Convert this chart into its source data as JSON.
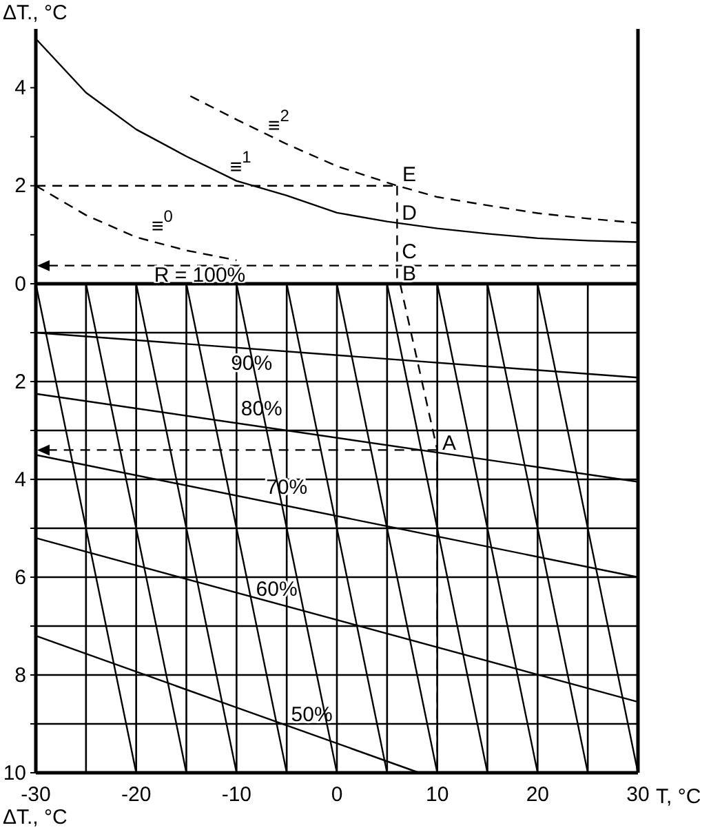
{
  "chart_data": [
    {
      "type": "line",
      "ylabel": "ΔT., °C",
      "xlim": [
        -30,
        30
      ],
      "ylim": [
        0,
        5.2
      ],
      "tick_labels": "y",
      "xticks": [
        {
          "value": -30,
          "label": null
        },
        {
          "value": -25,
          "label": null
        },
        {
          "value": -20,
          "label": null
        },
        {
          "value": -15,
          "label": null
        },
        {
          "value": -10,
          "label": null
        },
        {
          "value": -5,
          "label": null
        },
        {
          "value": 0,
          "label": null
        },
        {
          "value": 5,
          "label": null
        },
        {
          "value": 10,
          "label": null
        },
        {
          "value": 15,
          "label": null
        },
        {
          "value": 20,
          "label": null
        },
        {
          "value": 25,
          "label": null
        },
        {
          "value": 30,
          "label": null
        }
      ],
      "yticks": [
        0,
        {
          "value": 1,
          "label": null
        },
        2,
        {
          "value": 3,
          "label": null
        },
        4
      ],
      "series": [
        {
          "name": "≡$^{0}$",
          "color": "#000000",
          "line_style": "dashed",
          "x": [
            -30,
            -25,
            -20,
            -15,
            -10
          ],
          "values": [
            2.0,
            1.4,
            0.95,
            0.68,
            0.48
          ]
        },
        {
          "name": "≡$^{1}$",
          "color": "#000000",
          "line_style": "solid",
          "x": [
            -30,
            -25,
            -20,
            -15,
            -10,
            -5,
            0,
            5,
            10,
            15,
            20,
            25,
            30
          ],
          "values": [
            5.0,
            3.9,
            3.15,
            2.6,
            2.1,
            1.8,
            1.45,
            1.27,
            1.13,
            1.02,
            0.93,
            0.88,
            0.85
          ]
        },
        {
          "name": "≡$^{2}$",
          "color": "#000000",
          "line_style": "dashed",
          "x": [
            -14.6,
            -10,
            -5,
            0,
            6,
            10,
            15,
            20,
            25,
            30
          ],
          "values": [
            3.83,
            3.35,
            2.85,
            2.4,
            2.0,
            1.77,
            1.6,
            1.44,
            1.33,
            1.24
          ]
        },
        {
          "color": "#000000",
          "line_style": "dashed",
          "x": [
            -30,
            6
          ],
          "values": [
            2,
            2
          ]
        },
        {
          "color": "#000000",
          "line_style": "dashed",
          "x": [
            6,
            6
          ],
          "values": [
            2,
            0
          ]
        }
      ],
      "ref_lines": [
        {
          "axis": "y",
          "value": 0.37,
          "line_style": "dashed"
        }
      ],
      "annotations": [
        "R = 100%",
        "E",
        "D",
        "C",
        "B"
      ]
    },
    {
      "type": "line",
      "xlabel": "T, °C",
      "ylabel": "ΔT., °C",
      "xlim": [
        -30,
        30
      ],
      "ylim": [
        10,
        0
      ],
      "grid": true,
      "xticks": [
        -30,
        {
          "value": -25,
          "label": null
        },
        -20,
        {
          "value": -15,
          "label": null
        },
        -10,
        {
          "value": -5,
          "label": null
        },
        0,
        {
          "value": 5,
          "label": null
        },
        10,
        {
          "value": 15,
          "label": null
        },
        20,
        {
          "value": 25,
          "label": null
        },
        30
      ],
      "yticks": [
        {
          "value": 0,
          "label": null
        },
        {
          "value": 1,
          "label": null
        },
        2,
        {
          "value": 3,
          "label": null
        },
        4,
        {
          "value": 5,
          "label": null
        },
        6,
        {
          "value": 7,
          "label": null
        },
        8,
        {
          "value": 9,
          "label": null
        },
        10
      ],
      "series": [
        {
          "name": "90%",
          "color": "#000000",
          "line_style": "solid",
          "x": [
            -30,
            30
          ],
          "values": [
            1.0,
            1.92
          ]
        },
        {
          "name": "80%",
          "color": "#000000",
          "line_style": "solid",
          "x": [
            -30,
            30
          ],
          "values": [
            2.25,
            4.05
          ]
        },
        {
          "name": "70%",
          "color": "#000000",
          "line_style": "solid",
          "x": [
            -30,
            30
          ],
          "values": [
            3.5,
            6.0
          ]
        },
        {
          "name": "60%",
          "color": "#000000",
          "line_style": "solid",
          "x": [
            -30,
            30
          ],
          "values": [
            5.2,
            8.55
          ]
        },
        {
          "name": "50%",
          "color": "#000000",
          "line_style": "solid",
          "x": [
            -30,
            8.2
          ],
          "values": [
            7.2,
            10
          ]
        },
        {
          "color": "#000000",
          "line_style": "solid",
          "x": [
            -30,
            -20
          ],
          "values": [
            0,
            10
          ]
        },
        {
          "color": "#000000",
          "line_style": "solid",
          "x": [
            -25,
            -15
          ],
          "values": [
            0,
            10
          ]
        },
        {
          "color": "#000000",
          "line_style": "solid",
          "x": [
            -20,
            -10
          ],
          "values": [
            0,
            10
          ]
        },
        {
          "color": "#000000",
          "line_style": "solid",
          "x": [
            -15,
            -5
          ],
          "values": [
            0,
            10
          ]
        },
        {
          "color": "#000000",
          "line_style": "solid",
          "x": [
            -10,
            0
          ],
          "values": [
            0,
            10
          ]
        },
        {
          "color": "#000000",
          "line_style": "solid",
          "x": [
            -5,
            5
          ],
          "values": [
            0,
            10
          ]
        },
        {
          "color": "#000000",
          "line_style": "solid",
          "x": [
            0,
            10
          ],
          "values": [
            0,
            10
          ]
        },
        {
          "color": "#000000",
          "line_style": "solid",
          "x": [
            5,
            15
          ],
          "values": [
            0,
            10
          ]
        },
        {
          "color": "#000000",
          "line_style": "solid",
          "x": [
            10,
            20
          ],
          "values": [
            0,
            10
          ]
        },
        {
          "color": "#000000",
          "line_style": "solid",
          "x": [
            15,
            25
          ],
          "values": [
            0,
            10
          ]
        },
        {
          "color": "#000000",
          "line_style": "solid",
          "x": [
            20,
            30
          ],
          "values": [
            0,
            10
          ]
        },
        {
          "color": "#000000",
          "line_style": "dashed",
          "x": [
            6.3,
            10,
            10
          ],
          "values": [
            0,
            3.4,
            10
          ]
        }
      ],
      "annotations": [
        "A"
      ]
    }
  ]
}
